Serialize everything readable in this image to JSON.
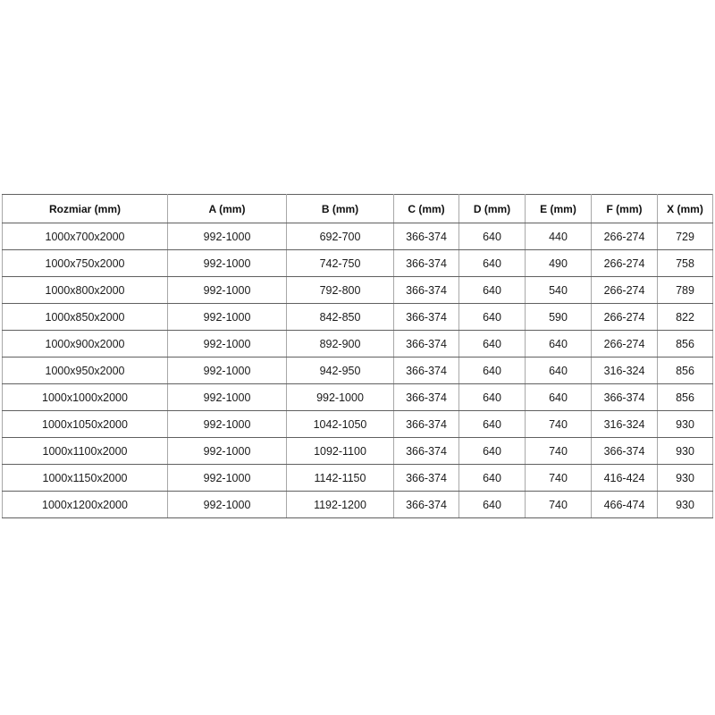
{
  "page": {
    "background_color": "#ffffff",
    "text_color": "#1a1a1a",
    "border_color_horizontal": "#606060",
    "border_color_vertical": "#a8a8a8"
  },
  "table": {
    "columns": [
      "Rozmiar (mm)",
      "A (mm)",
      "B (mm)",
      "C (mm)",
      "D (mm)",
      "E (mm)",
      "F (mm)",
      "X (mm)"
    ],
    "rows": [
      [
        "1000x700x2000",
        "992-1000",
        "692-700",
        "366-374",
        "640",
        "440",
        "266-274",
        "729"
      ],
      [
        "1000x750x2000",
        "992-1000",
        "742-750",
        "366-374",
        "640",
        "490",
        "266-274",
        "758"
      ],
      [
        "1000x800x2000",
        "992-1000",
        "792-800",
        "366-374",
        "640",
        "540",
        "266-274",
        "789"
      ],
      [
        "1000x850x2000",
        "992-1000",
        "842-850",
        "366-374",
        "640",
        "590",
        "266-274",
        "822"
      ],
      [
        "1000x900x2000",
        "992-1000",
        "892-900",
        "366-374",
        "640",
        "640",
        "266-274",
        "856"
      ],
      [
        "1000x950x2000",
        "992-1000",
        "942-950",
        "366-374",
        "640",
        "640",
        "316-324",
        "856"
      ],
      [
        "1000x1000x2000",
        "992-1000",
        "992-1000",
        "366-374",
        "640",
        "640",
        "366-374",
        "856"
      ],
      [
        "1000x1050x2000",
        "992-1000",
        "1042-1050",
        "366-374",
        "640",
        "740",
        "316-324",
        "930"
      ],
      [
        "1000x1100x2000",
        "992-1000",
        "1092-1100",
        "366-374",
        "640",
        "740",
        "366-374",
        "930"
      ],
      [
        "1000x1150x2000",
        "992-1000",
        "1142-1150",
        "366-374",
        "640",
        "740",
        "416-424",
        "930"
      ],
      [
        "1000x1200x2000",
        "992-1000",
        "1192-1200",
        "366-374",
        "640",
        "740",
        "466-474",
        "930"
      ]
    ]
  }
}
